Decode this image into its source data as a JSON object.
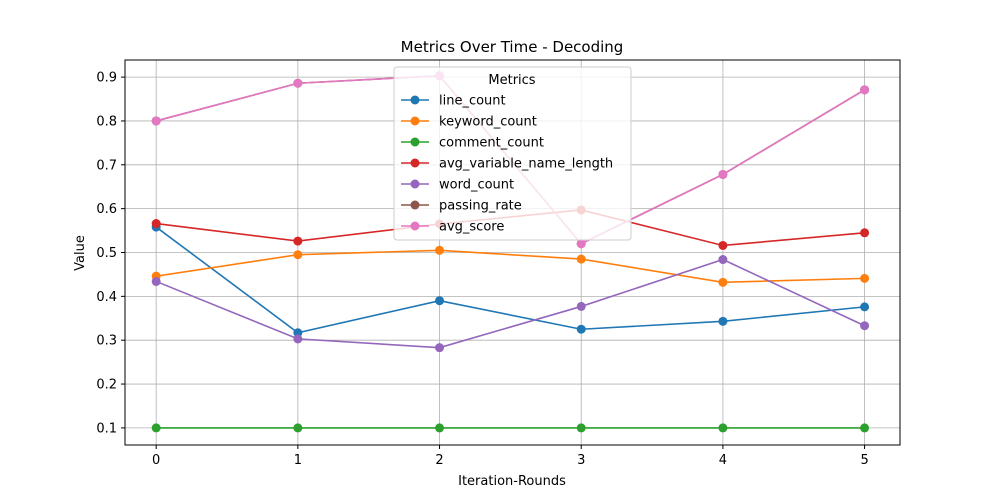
{
  "chart_data": {
    "type": "line",
    "title": "Metrics Over Time - Decoding",
    "xlabel": "Iteration-Rounds",
    "ylabel": "Value",
    "x": [
      0,
      1,
      2,
      3,
      4,
      5
    ],
    "xlim": [
      -0.22,
      5.25
    ],
    "ylim": [
      0.061,
      0.939
    ],
    "yticks": [
      0.1,
      0.2,
      0.3,
      0.4,
      0.5,
      0.6,
      0.7,
      0.8,
      0.9
    ],
    "yticklabels": [
      "0.1",
      "0.2",
      "0.3",
      "0.4",
      "0.5",
      "0.6",
      "0.7",
      "0.8",
      "0.9"
    ],
    "xticklabels": [
      "0",
      "1",
      "2",
      "3",
      "4",
      "5"
    ],
    "grid": true,
    "legend": {
      "title": "Metrics",
      "placement": "upper-center"
    },
    "series": [
      {
        "name": "line_count",
        "color": "#1f77b4",
        "values": [
          0.558,
          0.317,
          0.39,
          0.325,
          0.343,
          0.376
        ]
      },
      {
        "name": "keyword_count",
        "color": "#ff7f0e",
        "values": [
          0.446,
          0.495,
          0.505,
          0.485,
          0.432,
          0.441
        ]
      },
      {
        "name": "comment_count",
        "color": "#2ca02c",
        "values": [
          0.1,
          0.1,
          0.1,
          0.1,
          0.1,
          0.1
        ]
      },
      {
        "name": "avg_variable_name_length",
        "color": "#d62728",
        "values": [
          0.566,
          0.526,
          0.565,
          0.597,
          0.516,
          0.545
        ]
      },
      {
        "name": "word_count",
        "color": "#9467bd",
        "values": [
          0.434,
          0.303,
          0.283,
          0.377,
          0.484,
          0.333
        ]
      },
      {
        "name": "passing_rate",
        "color": "#8c564b",
        "values": [
          0.8,
          0.886,
          0.903,
          0.52,
          0.678,
          0.871
        ]
      },
      {
        "name": "avg_score",
        "color": "#e377c2",
        "values": [
          0.8,
          0.886,
          0.903,
          0.52,
          0.678,
          0.871
        ]
      }
    ]
  }
}
